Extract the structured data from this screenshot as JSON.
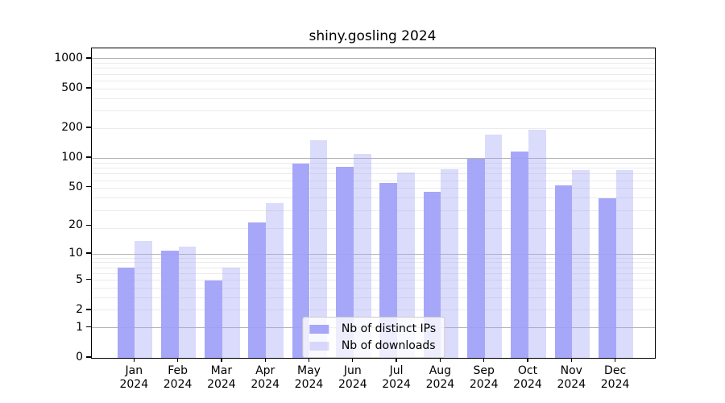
{
  "figure": {
    "title": "shiny.gosling 2024"
  },
  "chart_data": {
    "type": "bar",
    "title": "shiny.gosling 2024",
    "categories": [
      "Jan",
      "Feb",
      "Mar",
      "Apr",
      "May",
      "Jun",
      "Jul",
      "Aug",
      "Sep",
      "Oct",
      "Nov",
      "Dec"
    ],
    "category_year": "2024",
    "series": [
      {
        "name": "Nb of distinct IPs",
        "color": "rgba(160,160,248,0.92)",
        "values": [
          7,
          11,
          5,
          22,
          88,
          82,
          56,
          45,
          98,
          117,
          53,
          39
        ]
      },
      {
        "name": "Nb of downloads",
        "color": "rgba(160,160,248,0.38)",
        "values": [
          14,
          12,
          7,
          35,
          152,
          110,
          71,
          77,
          172,
          193,
          75,
          75
        ]
      }
    ],
    "xlabel": "",
    "ylabel": "",
    "y_scale": "log1p",
    "y_ticks": [
      0,
      1,
      2,
      5,
      10,
      20,
      50,
      100,
      200,
      500,
      1000
    ],
    "y_major_gridlines": [
      1,
      10,
      100,
      1000
    ],
    "ylim": [
      0,
      1300
    ],
    "grid": true,
    "legend_position": "lower center",
    "colors": {
      "major_grid": "#b3b3b3",
      "minor_grid": "#ebebeb",
      "spine": "#000000",
      "text": "#000000",
      "background": "#ffffff"
    }
  }
}
